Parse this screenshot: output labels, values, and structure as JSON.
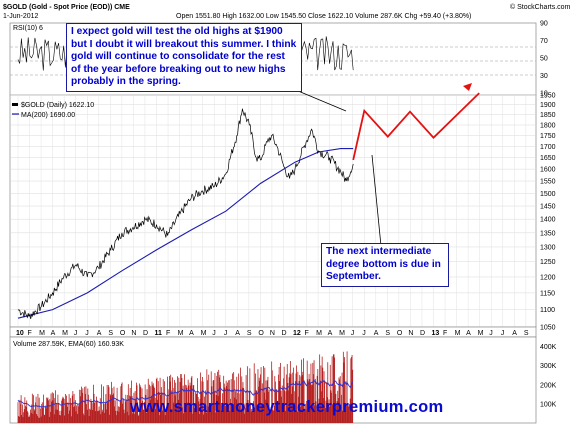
{
  "header": {
    "symbol_title": "$GOLD (Gold - Spot Price (EOD)) CME",
    "date": "1-Jun-2012",
    "ohlc": "Open 1551.80  High 1632.00  Low 1545.50  Close 1622.10  Volume 287.6K  Chg +59.40 (+3.80%)",
    "copyright": "© StockCharts.com"
  },
  "rsi_panel": {
    "label": "RSI(10) 6",
    "ticks": [
      "90",
      "70",
      "50",
      "30",
      "10"
    ]
  },
  "price_panel": {
    "legend_price": "$GOLD (Daily) 1622.10",
    "legend_ma": "MA(200) 1690.00"
  },
  "volume_panel": {
    "legend": "Volume 287.59K, EMA(60) 160.93K",
    "ticks": [
      "400K",
      "300K",
      "200K",
      "100K"
    ]
  },
  "annotations": {
    "callout_top": "I expect gold will test the old highs at $1900 but I doubt it will breakout this summer. I think gold will continue to consolidate for the rest of the year before breaking out to new highs probably in the spring.",
    "callout_bottom": "The next intermediate degree bottom is due in September.",
    "watermark": "www.smartmoneytrackerpremium.com"
  },
  "colors": {
    "price": "#000000",
    "ma": "#1c1cb0",
    "projection": "#e51010",
    "volume_bars": "#b52020",
    "volume_ema": "#3030d0",
    "rsi": "#000000",
    "callout_text": "#0000cc"
  },
  "chart_data": {
    "type": "line",
    "title": "$GOLD (Gold - Spot Price (EOD)) CME",
    "x_tick_labels": [
      "10",
      "F",
      "M",
      "A",
      "M",
      "J",
      "J",
      "A",
      "S",
      "O",
      "N",
      "D",
      "11",
      "F",
      "M",
      "A",
      "M",
      "J",
      "J",
      "A",
      "S",
      "O",
      "N",
      "D",
      "12",
      "F",
      "M",
      "A",
      "M",
      "J",
      "J",
      "A",
      "S",
      "O",
      "N",
      "D",
      "13",
      "F",
      "M",
      "A",
      "M",
      "J",
      "J",
      "A",
      "S"
    ],
    "y_tick_labels": [
      "1950",
      "1900",
      "1850",
      "1800",
      "1750",
      "1700",
      "1650",
      "1600",
      "1550",
      "1500",
      "1450",
      "1400",
      "1350",
      "1300",
      "1250",
      "1200",
      "1150",
      "1100",
      "1050"
    ],
    "ylim": [
      1050,
      1950
    ],
    "y_scale": "log",
    "grid": true,
    "series": [
      {
        "name": "$GOLD (Daily)",
        "x": [
          2010.0,
          2010.08,
          2010.17,
          2010.25,
          2010.33,
          2010.42,
          2010.5,
          2010.58,
          2010.67,
          2010.75,
          2010.83,
          2010.92,
          2011.0,
          2011.08,
          2011.17,
          2011.25,
          2011.33,
          2011.42,
          2011.5,
          2011.58,
          2011.62,
          2011.67,
          2011.72,
          2011.75,
          2011.8,
          2011.83,
          2011.87,
          2011.92,
          2011.96,
          2012.0,
          2012.08,
          2012.12,
          2012.17,
          2012.25,
          2012.33,
          2012.37,
          2012.42
        ],
        "values": [
          1100,
          1080,
          1110,
          1150,
          1200,
          1240,
          1200,
          1230,
          1290,
          1350,
          1370,
          1400,
          1380,
          1340,
          1420,
          1480,
          1510,
          1530,
          1580,
          1750,
          1880,
          1800,
          1650,
          1640,
          1720,
          1750,
          1700,
          1610,
          1560,
          1600,
          1720,
          1780,
          1680,
          1650,
          1590,
          1550,
          1622
        ]
      },
      {
        "name": "MA(200)",
        "x": [
          2010.0,
          2010.25,
          2010.5,
          2010.75,
          2011.0,
          2011.25,
          2011.5,
          2011.75,
          2012.0,
          2012.17,
          2012.33,
          2012.42
        ],
        "values": [
          1075,
          1100,
          1150,
          1220,
          1290,
          1360,
          1430,
          1540,
          1630,
          1675,
          1690,
          1690
        ]
      },
      {
        "name": "projection",
        "x": [
          2012.42,
          2012.5,
          2012.67,
          2012.83,
          2013.0,
          2013.33
        ],
        "values": [
          1640,
          1870,
          1745,
          1865,
          1740,
          1960
        ]
      }
    ]
  }
}
